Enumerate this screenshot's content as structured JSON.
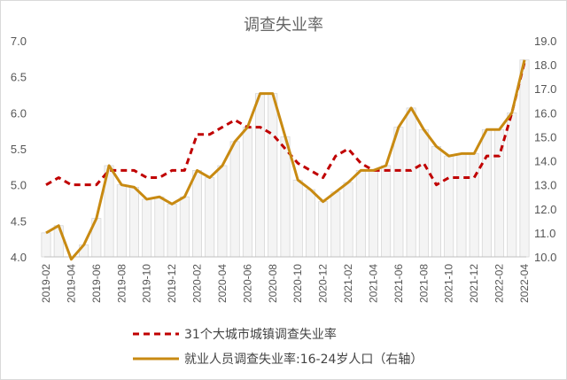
{
  "chart_data": {
    "type": "line",
    "title": "调查失业率",
    "x": [
      "2019-02",
      "2019-03",
      "2019-04",
      "2019-05",
      "2019-06",
      "2019-07",
      "2019-08",
      "2019-09",
      "2019-10",
      "2019-11",
      "2019-12",
      "2020-01",
      "2020-02",
      "2020-03",
      "2020-04",
      "2020-05",
      "2020-06",
      "2020-07",
      "2020-08",
      "2020-09",
      "2020-10",
      "2020-11",
      "2020-12",
      "2021-01",
      "2021-02",
      "2021-03",
      "2021-04",
      "2021-05",
      "2021-06",
      "2021-07",
      "2021-08",
      "2021-09",
      "2021-10",
      "2021-11",
      "2021-12",
      "2022-01",
      "2022-02",
      "2022-03",
      "2022-04"
    ],
    "x_tick_labels": [
      "2019-02",
      "2019-04",
      "2019-06",
      "2019-08",
      "2019-10",
      "2019-12",
      "2020-02",
      "2020-04",
      "2020-06",
      "2020-08",
      "2020-10",
      "2020-12",
      "2021-02",
      "2021-04",
      "2021-06",
      "2021-08",
      "2021-10",
      "2021-12",
      "2022-02",
      "2022-04"
    ],
    "y_left": {
      "lim": [
        4.0,
        7.0
      ],
      "ticks": [
        "4.0",
        "4.5",
        "5.0",
        "5.5",
        "6.0",
        "6.5",
        "7.0"
      ]
    },
    "y_right": {
      "lim": [
        10.0,
        19.0
      ],
      "ticks": [
        "10.0",
        "11.0",
        "12.0",
        "13.0",
        "14.0",
        "15.0",
        "16.0",
        "17.0",
        "18.0",
        "19.0"
      ]
    },
    "series": [
      {
        "name": "31个大城市城镇调查失业率",
        "axis": "left",
        "style": "dashed",
        "color": "#c00000",
        "values": [
          5.0,
          5.1,
          5.0,
          5.0,
          5.0,
          5.2,
          5.2,
          5.2,
          5.1,
          5.1,
          5.2,
          5.2,
          5.7,
          5.7,
          5.8,
          5.9,
          5.8,
          5.8,
          5.7,
          5.5,
          5.3,
          5.2,
          5.1,
          5.4,
          5.5,
          5.3,
          5.2,
          5.2,
          5.2,
          5.2,
          5.3,
          5.0,
          5.1,
          5.1,
          5.1,
          5.4,
          5.4,
          6.0,
          6.7
        ]
      },
      {
        "name": "就业人员调查失业率:16-24岁人口（右轴）",
        "axis": "right",
        "style": "solid",
        "color": "#c88a12",
        "values": [
          11.0,
          11.3,
          9.9,
          10.5,
          11.6,
          13.8,
          13.0,
          12.9,
          12.4,
          12.5,
          12.2,
          12.5,
          13.6,
          13.3,
          13.8,
          14.8,
          15.4,
          16.8,
          16.8,
          15.0,
          13.2,
          12.8,
          12.3,
          12.7,
          13.1,
          13.6,
          13.6,
          13.8,
          15.4,
          16.2,
          15.3,
          14.6,
          14.2,
          14.3,
          14.3,
          15.3,
          15.3,
          16.0,
          18.2
        ]
      }
    ],
    "grid": false,
    "legend_position": "bottom"
  }
}
